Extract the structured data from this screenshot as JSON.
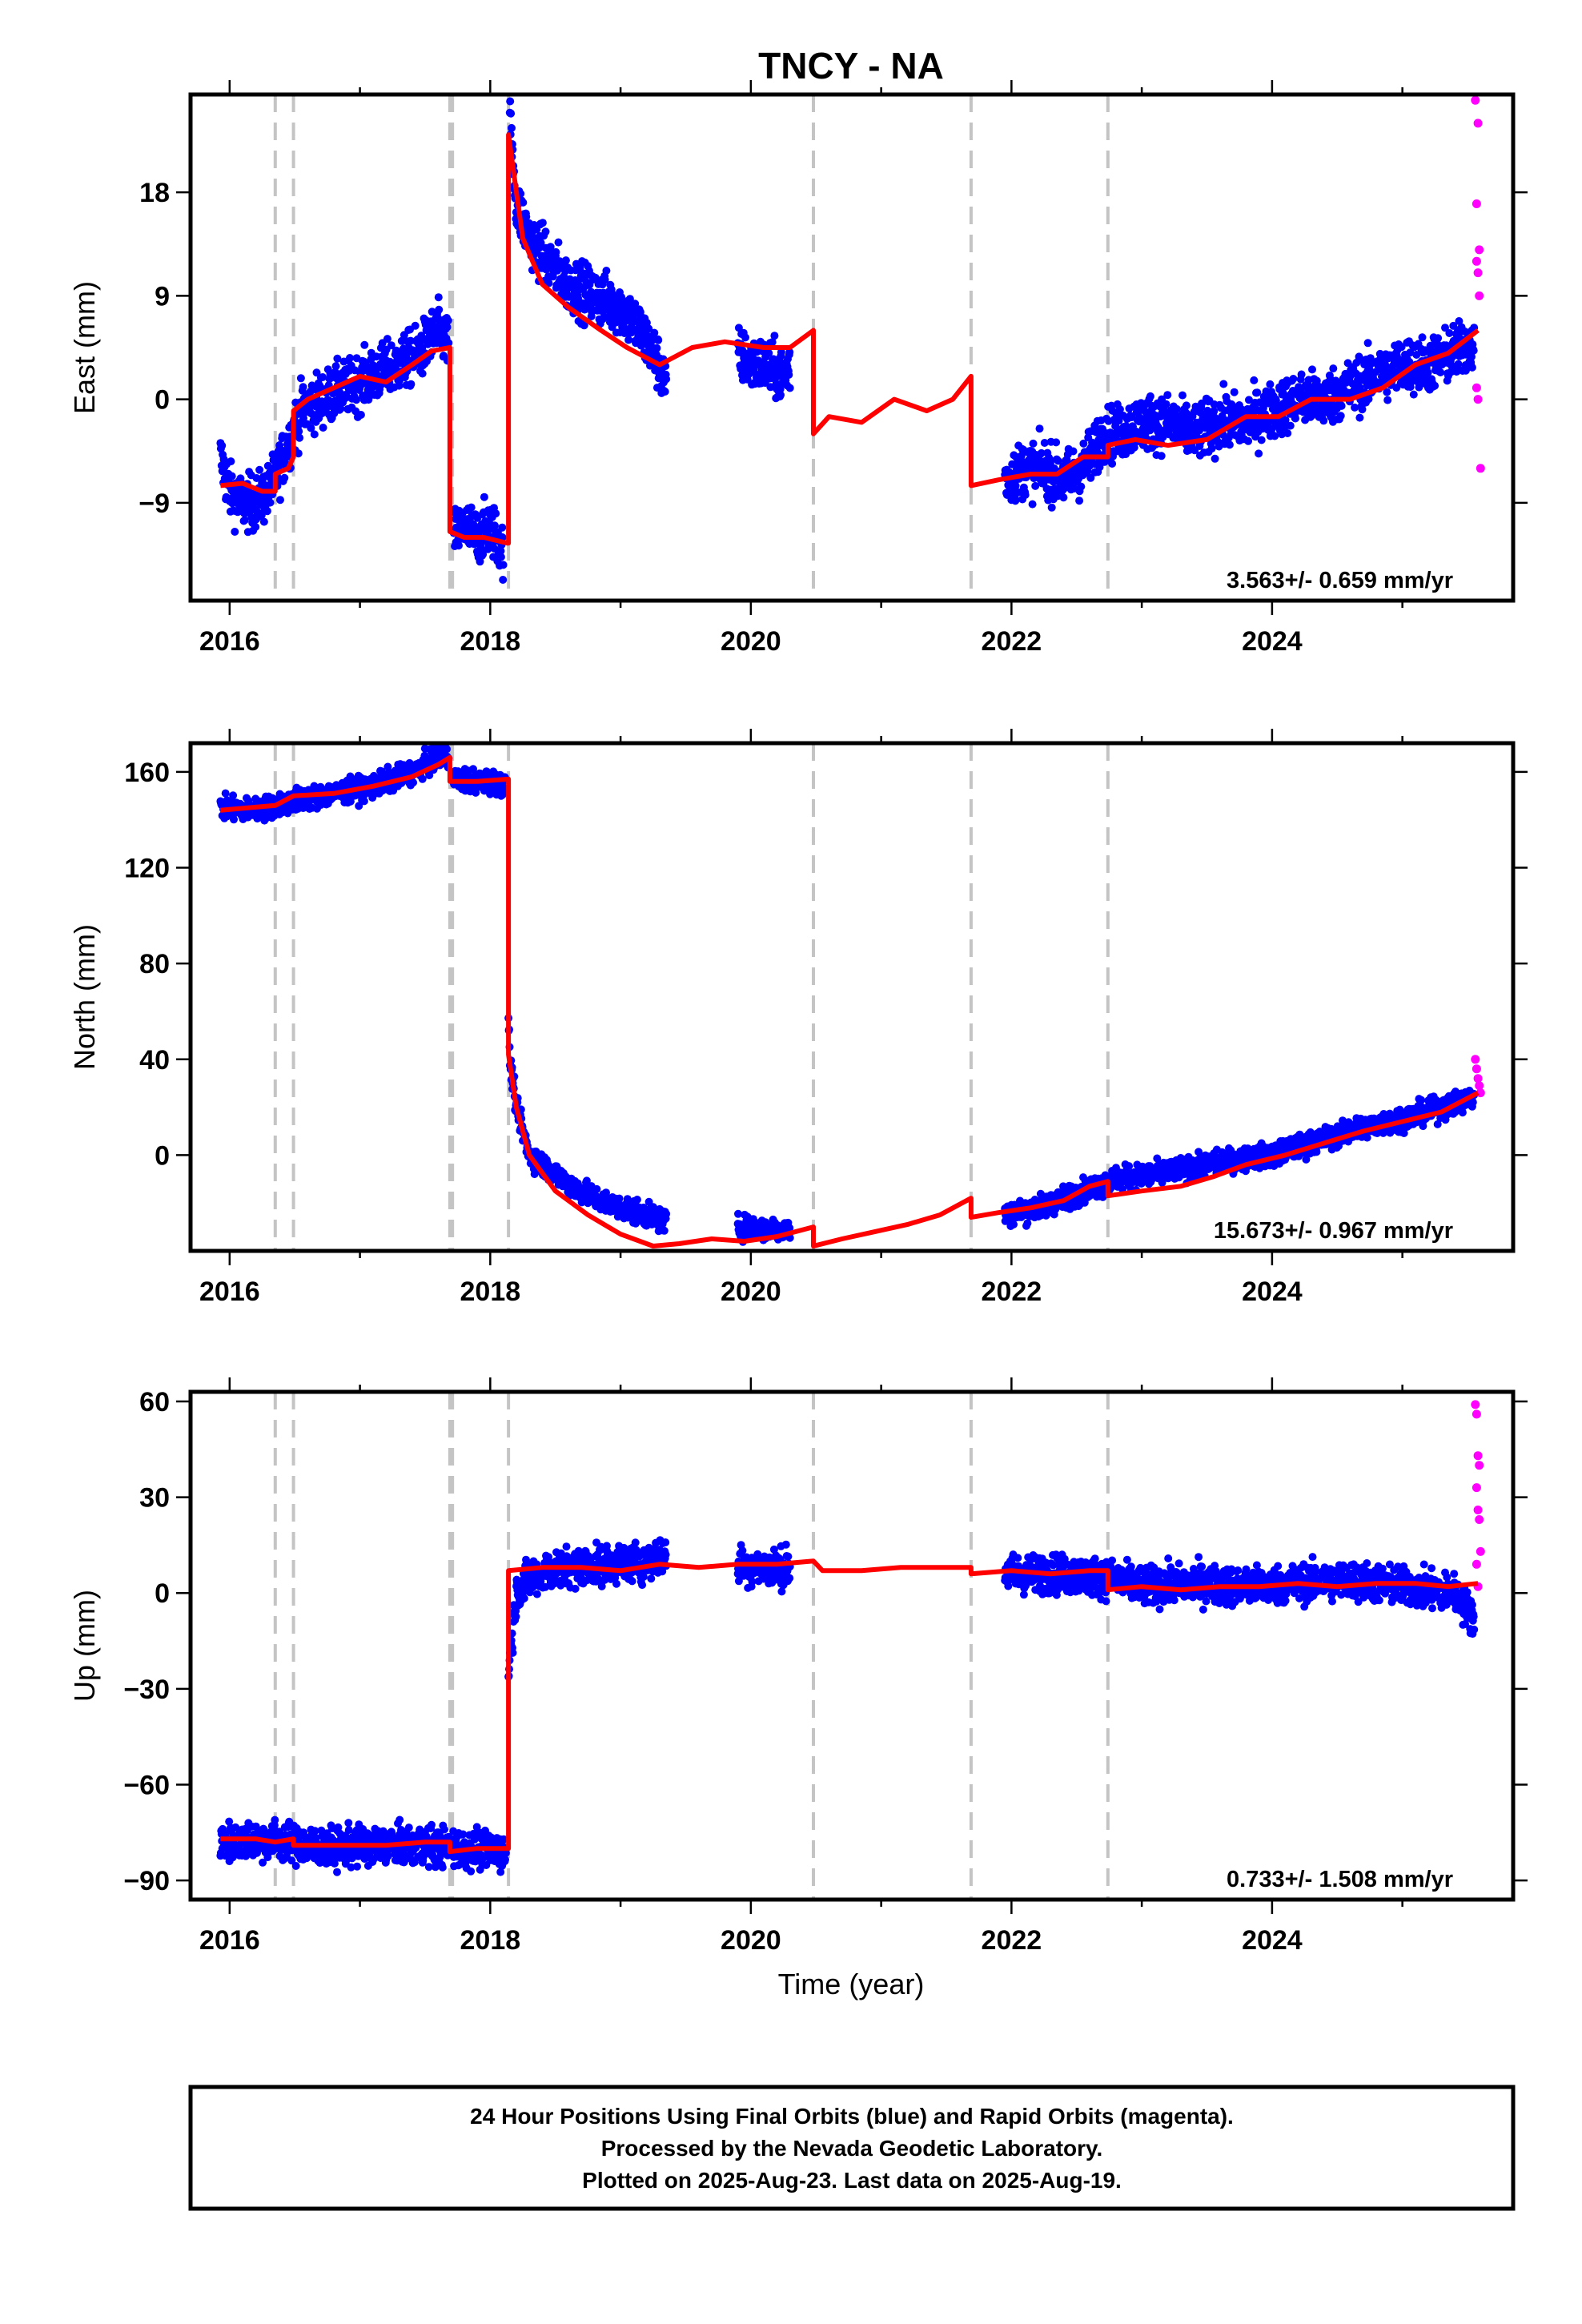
{
  "title": "TNCY - NA",
  "colors": {
    "final_orbits": "#0000ff",
    "rapid_orbits": "#ff00ff",
    "model": "#ff0000",
    "event_lines": "#c4c4c4"
  },
  "x_axis": {
    "label": "Time (year)",
    "range": [
      2015.7,
      2025.85
    ],
    "ticks": [
      2016,
      2018,
      2020,
      2022,
      2024
    ],
    "tick_labels": [
      "2016",
      "2018",
      "2020",
      "2022",
      "2024"
    ]
  },
  "event_lines": [
    2016.35,
    2016.49,
    2017.69,
    2017.71,
    2018.14,
    2020.48,
    2021.69,
    2022.74
  ],
  "panels": [
    {
      "id": "east",
      "ylabel": "East (mm)",
      "ylim": [
        -17.5,
        26.5
      ],
      "yticks": [
        -9,
        0,
        9,
        18
      ],
      "ytick_labels": [
        "−9",
        "0",
        "9",
        "18"
      ],
      "rate": "3.563+/- 0.659 mm/yr"
    },
    {
      "id": "north",
      "ylabel": "North (mm)",
      "ylim": [
        -40,
        172
      ],
      "yticks": [
        0,
        40,
        80,
        120,
        160
      ],
      "ytick_labels": [
        "0",
        "40",
        "80",
        "120",
        "160"
      ],
      "rate": "15.673+/- 0.967 mm/yr"
    },
    {
      "id": "up",
      "ylabel": "Up (mm)",
      "ylim": [
        -96,
        63
      ],
      "yticks": [
        -90,
        -60,
        -30,
        0,
        30,
        60
      ],
      "ytick_labels": [
        "−90",
        "−60",
        "−30",
        "0",
        "30",
        "60"
      ],
      "rate": "0.733+/- 1.508 mm/yr"
    }
  ],
  "chart_data": [
    {
      "type": "scatter",
      "title": "TNCY - NA",
      "xlabel": "",
      "ylabel": "East (mm)",
      "xlim": [
        2015.7,
        2025.85
      ],
      "ylim": [
        -17.5,
        26.5
      ],
      "series": [
        {
          "name": "Final Orbits (blue)",
          "segments": [
            {
              "x": [
                2015.93,
                2016.0,
                2016.1,
                2016.2,
                2016.3,
                2016.38,
                2016.48,
                2016.55,
                2016.7,
                2016.9,
                2017.1,
                2017.3,
                2017.45,
                2017.6,
                2017.68
              ],
              "y": [
                -5,
                -8,
                -9,
                -9,
                -8,
                -6,
                -3,
                -1,
                0,
                1,
                2,
                3,
                4,
                6,
                5
              ]
            },
            {
              "x": [
                2017.72,
                2017.8,
                2017.9,
                2018.0,
                2018.1
              ],
              "y": [
                -12,
                -11,
                -12,
                -11,
                -13
              ]
            },
            {
              "x": [
                2018.15,
                2018.2,
                2018.3,
                2018.45,
                2018.6,
                2018.8,
                2019.0,
                2019.15,
                2019.3,
                2019.35
              ],
              "y": [
                24,
                17,
                14,
                12,
                10,
                9,
                8,
                6,
                3,
                1
              ]
            },
            {
              "x": [
                2019.9,
                2020.0,
                2020.1,
                2020.25,
                2020.3
              ],
              "y": [
                4,
                3,
                3,
                2,
                3
              ]
            },
            {
              "x": [
                2021.95,
                2022.1,
                2022.25,
                2022.4,
                2022.55,
                2022.7,
                2022.8,
                2023.0,
                2023.2,
                2023.4,
                2023.6,
                2023.8,
                2024.0,
                2024.2,
                2024.4,
                2024.6,
                2024.8,
                2025.0,
                2025.2,
                2025.4,
                2025.55
              ],
              "y": [
                -7,
                -6,
                -6,
                -7,
                -6,
                -3,
                -3,
                -2,
                -2,
                -3,
                -2,
                -2,
                -1,
                0,
                0,
                1,
                2,
                3,
                3,
                4,
                5
              ]
            }
          ]
        },
        {
          "name": "Rapid Orbits (magenta)",
          "x": [
            2025.56,
            2025.58,
            2025.57,
            2025.59,
            2025.57,
            2025.58,
            2025.59,
            2025.57,
            2025.58,
            2025.6
          ],
          "y": [
            26,
            24,
            17,
            13,
            12,
            11,
            9,
            1,
            0,
            -6
          ]
        },
        {
          "name": "Model",
          "x": [
            2015.93,
            2016.1,
            2016.25,
            2016.35,
            2016.35,
            2016.45,
            2016.49,
            2016.49,
            2016.6,
            2016.8,
            2017.0,
            2017.2,
            2017.4,
            2017.55,
            2017.69,
            2017.69,
            2017.8,
            2017.95,
            2018.13,
            2018.14,
            2018.14,
            2018.25,
            2018.4,
            2018.6,
            2018.85,
            2019.05,
            2019.3,
            2019.55,
            2019.8,
            2020.1,
            2020.3,
            2020.48,
            2020.48,
            2020.6,
            2020.85,
            2021.1,
            2021.35,
            2021.55,
            2021.69,
            2021.69,
            2021.9,
            2022.15,
            2022.35,
            2022.55,
            2022.74,
            2022.74,
            2022.95,
            2023.2,
            2023.5,
            2023.8,
            2024.05,
            2024.3,
            2024.6,
            2024.85,
            2025.1,
            2025.35,
            2025.58
          ],
          "y": [
            -7.5,
            -7.3,
            -8,
            -8,
            -6.5,
            -6,
            -5,
            -1,
            0,
            1,
            2,
            1.5,
            3,
            4.2,
            4.5,
            -11.5,
            -12,
            -12,
            -12.5,
            -12.5,
            23,
            14,
            10,
            8,
            6,
            4.5,
            3,
            4.5,
            5,
            4.5,
            4.5,
            6,
            -3,
            -1.5,
            -2,
            0,
            -1,
            0,
            2,
            -7.5,
            -7,
            -6.5,
            -6.5,
            -5,
            -5,
            -4,
            -3.5,
            -4,
            -3.5,
            -1.5,
            -1.5,
            0,
            0,
            1,
            3,
            4,
            6
          ]
        }
      ],
      "annotations": [
        "3.563+/- 0.659 mm/yr"
      ]
    },
    {
      "type": "scatter",
      "title": "",
      "xlabel": "",
      "ylabel": "North (mm)",
      "xlim": [
        2015.7,
        2025.85
      ],
      "ylim": [
        -40,
        172
      ],
      "series": [
        {
          "name": "Final Orbits (blue)",
          "segments": [
            {
              "x": [
                2015.93,
                2016.2,
                2016.5,
                2016.8,
                2017.1,
                2017.4,
                2017.6,
                2017.68
              ],
              "y": [
                145,
                144,
                148,
                151,
                154,
                160,
                166,
                167
              ]
            },
            {
              "x": [
                2017.72,
                2017.9,
                2018.05,
                2018.12
              ],
              "y": [
                157,
                156,
                156,
                153
              ]
            },
            {
              "x": [
                2018.14,
                2018.15,
                2018.2,
                2018.3,
                2018.45,
                2018.6,
                2018.8,
                2019.0,
                2019.2,
                2019.35
              ],
              "y": [
                60,
                40,
                20,
                0,
                -6,
                -12,
                -18,
                -22,
                -25,
                -28
              ]
            },
            {
              "x": [
                2019.9,
                2020.1,
                2020.3
              ],
              "y": [
                -30,
                -31,
                -31
              ]
            },
            {
              "x": [
                2021.95,
                2022.2,
                2022.5,
                2022.8,
                2023.1,
                2023.4,
                2023.7,
                2024.0,
                2024.3,
                2024.6,
                2024.9,
                2025.2,
                2025.55
              ],
              "y": [
                -25,
                -22,
                -16,
                -10,
                -8,
                -5,
                -2,
                0,
                5,
                10,
                14,
                18,
                24
              ]
            }
          ]
        },
        {
          "name": "Rapid Orbits (magenta)",
          "x": [
            2025.56,
            2025.57,
            2025.58,
            2025.59,
            2025.6
          ],
          "y": [
            40,
            36,
            32,
            29,
            26
          ]
        },
        {
          "name": "Model",
          "x": [
            2015.93,
            2016.35,
            2016.49,
            2016.8,
            2017.1,
            2017.4,
            2017.6,
            2017.69,
            2017.69,
            2017.9,
            2018.14,
            2018.14,
            2018.2,
            2018.3,
            2018.5,
            2018.75,
            2019.0,
            2019.25,
            2019.45,
            2019.7,
            2019.95,
            2020.2,
            2020.48,
            2020.48,
            2020.7,
            2020.95,
            2021.2,
            2021.45,
            2021.69,
            2021.69,
            2021.9,
            2022.15,
            2022.4,
            2022.6,
            2022.74,
            2022.74,
            2023.0,
            2023.3,
            2023.55,
            2023.8,
            2024.1,
            2024.4,
            2024.7,
            2025.0,
            2025.3,
            2025.58
          ],
          "y": [
            144,
            146,
            150,
            151,
            154,
            158,
            163,
            166,
            156,
            156,
            157,
            42,
            20,
            0,
            -15,
            -25,
            -33,
            -38,
            -37,
            -35,
            -36,
            -34,
            -30,
            -38,
            -35,
            -32,
            -29,
            -25,
            -18,
            -26,
            -24,
            -22,
            -19,
            -13,
            -11,
            -17,
            -15,
            -13,
            -9,
            -4,
            0,
            5,
            10,
            14,
            18,
            26
          ]
        }
      ],
      "annotations": [
        "15.673+/- 0.967 mm/yr"
      ]
    },
    {
      "type": "scatter",
      "title": "",
      "xlabel": "Time (year)",
      "ylabel": "Up (mm)",
      "xlim": [
        2015.7,
        2025.85
      ],
      "ylim": [
        -96,
        63
      ],
      "series": [
        {
          "name": "Final Orbits (blue)",
          "segments": [
            {
              "x": [
                2015.93,
                2016.3,
                2016.7,
                2017.1,
                2017.5,
                2017.8,
                2018.12
              ],
              "y": [
                -78,
                -77,
                -80,
                -79,
                -79,
                -80,
                -81
              ]
            },
            {
              "x": [
                2018.14,
                2018.2,
                2018.35,
                2018.6,
                2018.9,
                2019.2,
                2019.35
              ],
              "y": [
                -25,
                0,
                6,
                8,
                9,
                10,
                12
              ]
            },
            {
              "x": [
                2019.9,
                2020.1,
                2020.3
              ],
              "y": [
                9,
                8,
                8
              ]
            },
            {
              "x": [
                2021.95,
                2022.3,
                2022.7,
                2023.0,
                2023.4,
                2023.8,
                2024.2,
                2024.6,
                2025.0,
                2025.4,
                2025.55
              ],
              "y": [
                6,
                6,
                5,
                2,
                3,
                2,
                3,
                4,
                2,
                0,
                -8
              ]
            }
          ]
        },
        {
          "name": "Rapid Orbits (magenta)",
          "x": [
            2025.56,
            2025.57,
            2025.58,
            2025.59,
            2025.57,
            2025.58,
            2025.59,
            2025.6,
            2025.57,
            2025.58
          ],
          "y": [
            59,
            56,
            43,
            40,
            33,
            26,
            23,
            13,
            9,
            2
          ]
        },
        {
          "name": "Model",
          "x": [
            2015.93,
            2016.2,
            2016.35,
            2016.49,
            2016.49,
            2016.8,
            2017.2,
            2017.5,
            2017.69,
            2017.69,
            2017.9,
            2018.14,
            2018.14,
            2018.4,
            2018.7,
            2019.0,
            2019.3,
            2019.6,
            2019.9,
            2020.2,
            2020.48,
            2020.55,
            2020.85,
            2021.15,
            2021.45,
            2021.69,
            2021.69,
            2022.0,
            2022.3,
            2022.6,
            2022.74,
            2022.74,
            2023.0,
            2023.3,
            2023.6,
            2023.9,
            2024.2,
            2024.5,
            2024.8,
            2025.1,
            2025.35,
            2025.58
          ],
          "y": [
            -77,
            -77,
            -78,
            -77,
            -79,
            -79,
            -79,
            -78,
            -78,
            -81,
            -80,
            -80,
            7,
            8,
            8,
            7,
            9,
            8,
            9,
            9,
            10,
            7,
            7,
            8,
            8,
            8,
            6,
            7,
            6,
            7,
            7,
            1,
            2,
            1,
            2,
            2,
            3,
            2,
            3,
            3,
            2,
            3
          ]
        }
      ],
      "annotations": [
        "0.733+/- 1.508 mm/yr"
      ]
    }
  ],
  "footer": {
    "line1": "24 Hour Positions Using Final Orbits (blue) and Rapid Orbits (magenta).",
    "line2": "Processed by the Nevada Geodetic Laboratory.",
    "line3": "Plotted on 2025-Aug-23. Last data on 2025-Aug-19."
  }
}
